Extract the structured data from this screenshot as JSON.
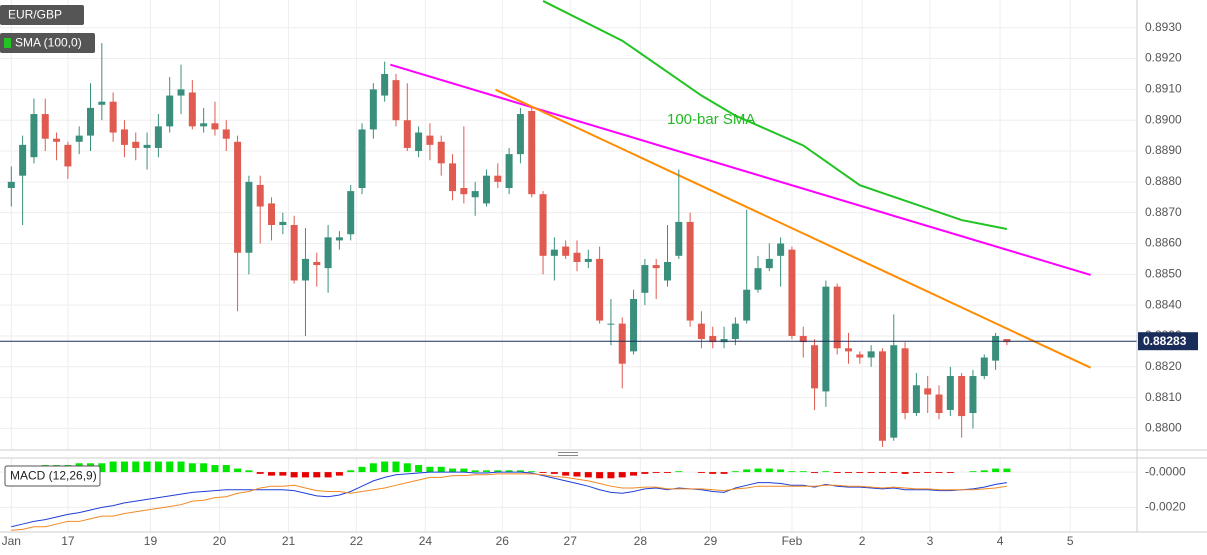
{
  "chart_data": [
    {
      "type": "candlestick",
      "title": "EUR/GBP",
      "up_color": "#3a8f7c",
      "down_color": "#e05a4f",
      "xlim": [
        -1,
        99.5
      ],
      "ylim": [
        0.8793,
        0.8939
      ],
      "yticks": [
        {
          "value": 0.88,
          "label": "0.8800"
        },
        {
          "value": 0.881,
          "label": "0.8810"
        },
        {
          "value": 0.882,
          "label": "0.8820"
        },
        {
          "value": 0.883,
          "label": "0.8830"
        },
        {
          "value": 0.884,
          "label": "0.8840"
        },
        {
          "value": 0.885,
          "label": "0.8850"
        },
        {
          "value": 0.886,
          "label": "0.8860"
        },
        {
          "value": 0.887,
          "label": "0.8870"
        },
        {
          "value": 0.888,
          "label": "0.8880"
        },
        {
          "value": 0.889,
          "label": "0.8890"
        },
        {
          "value": 0.89,
          "label": "0.8900"
        },
        {
          "value": 0.891,
          "label": "0.8910"
        },
        {
          "value": 0.892,
          "label": "0.8920"
        },
        {
          "value": 0.893,
          "label": "0.8930"
        }
      ],
      "grid": true,
      "open": [
        0.8878,
        0.8882,
        0.8888,
        0.8902,
        0.8894,
        0.8892,
        0.8893,
        0.8895,
        0.8905,
        0.8906,
        0.8897,
        0.8893,
        0.8891,
        0.8891,
        0.8898,
        0.8908,
        0.8909,
        0.8898,
        0.8899,
        0.8897,
        0.8893,
        0.8857,
        0.8879,
        0.8873,
        0.8866,
        0.8866,
        0.8848,
        0.8854,
        0.8852,
        0.8861,
        0.8863,
        0.8878,
        0.8897,
        0.8908,
        0.8913,
        0.89,
        0.889,
        0.8895,
        0.8893,
        0.8886,
        0.8878,
        0.8875,
        0.8873,
        0.8882,
        0.8878,
        0.8889,
        0.8903,
        0.8876,
        0.8856,
        0.8859,
        0.8857,
        0.8854,
        0.8855,
        0.8834,
        0.8834,
        0.8825,
        0.8844,
        0.8853,
        0.8848,
        0.8856,
        0.8867,
        0.8834,
        0.883,
        0.8828,
        0.8829,
        0.8835,
        0.8845,
        0.8852,
        0.8856,
        0.8858,
        0.883,
        0.8827,
        0.8812,
        0.8846,
        0.8826,
        0.8824,
        0.8823,
        0.8825,
        0.8797,
        0.8826,
        0.8805,
        0.8813,
        0.8811,
        0.8806,
        0.8817,
        0.8805,
        0.8817,
        0.8822,
        0.8829
      ],
      "high": [
        0.8885,
        0.8895,
        0.8907,
        0.8907,
        0.8896,
        0.8893,
        0.8898,
        0.8912,
        0.8925,
        0.8909,
        0.89,
        0.8896,
        0.8896,
        0.8902,
        0.8914,
        0.8918,
        0.8913,
        0.8904,
        0.8906,
        0.89,
        0.8895,
        0.8882,
        0.8882,
        0.8875,
        0.887,
        0.8869,
        0.8865,
        0.8857,
        0.8866,
        0.8864,
        0.8879,
        0.8899,
        0.8912,
        0.8919,
        0.8915,
        0.8912,
        0.8898,
        0.8899,
        0.8895,
        0.8889,
        0.8898,
        0.888,
        0.8884,
        0.8886,
        0.8891,
        0.8904,
        0.8904,
        0.8877,
        0.8862,
        0.8861,
        0.8861,
        0.8858,
        0.8859,
        0.8842,
        0.8836,
        0.8845,
        0.8855,
        0.8855,
        0.8866,
        0.8884,
        0.887,
        0.8838,
        0.8833,
        0.8833,
        0.8836,
        0.8871,
        0.8856,
        0.886,
        0.8862,
        0.8859,
        0.8833,
        0.8829,
        0.8848,
        0.8847,
        0.8831,
        0.8825,
        0.8827,
        0.8826,
        0.8837,
        0.8828,
        0.8818,
        0.8817,
        0.8814,
        0.882,
        0.8818,
        0.8819,
        0.8824,
        0.8831,
        0.8829
      ],
      "low": [
        0.8872,
        0.8866,
        0.8886,
        0.889,
        0.8887,
        0.8881,
        0.8889,
        0.889,
        0.89,
        0.8893,
        0.8888,
        0.8887,
        0.8884,
        0.8888,
        0.8896,
        0.8902,
        0.8897,
        0.8896,
        0.8895,
        0.889,
        0.8838,
        0.885,
        0.886,
        0.8861,
        0.8863,
        0.8847,
        0.883,
        0.8846,
        0.8844,
        0.8858,
        0.8861,
        0.8876,
        0.8894,
        0.8906,
        0.8898,
        0.889,
        0.8888,
        0.8887,
        0.8882,
        0.8874,
        0.8873,
        0.8869,
        0.8872,
        0.8878,
        0.8876,
        0.8886,
        0.8875,
        0.885,
        0.8848,
        0.8855,
        0.8851,
        0.8852,
        0.8834,
        0.8827,
        0.8813,
        0.8824,
        0.884,
        0.8842,
        0.8846,
        0.8855,
        0.8833,
        0.8826,
        0.8826,
        0.8826,
        0.8827,
        0.8834,
        0.8844,
        0.8851,
        0.8846,
        0.8829,
        0.8823,
        0.8806,
        0.8807,
        0.8824,
        0.8821,
        0.8821,
        0.882,
        0.8794,
        0.8796,
        0.8803,
        0.8804,
        0.8805,
        0.8803,
        0.8804,
        0.8797,
        0.88,
        0.8816,
        0.8819,
        0.8827
      ],
      "close": [
        0.888,
        0.8892,
        0.8902,
        0.8894,
        0.8893,
        0.8885,
        0.8895,
        0.8904,
        0.8906,
        0.8896,
        0.8892,
        0.8891,
        0.8892,
        0.8898,
        0.8908,
        0.891,
        0.8898,
        0.8899,
        0.8897,
        0.8894,
        0.8857,
        0.888,
        0.8872,
        0.8866,
        0.8867,
        0.8848,
        0.8855,
        0.8853,
        0.8862,
        0.8862,
        0.8877,
        0.8897,
        0.891,
        0.8915,
        0.89,
        0.8891,
        0.8896,
        0.8892,
        0.8886,
        0.8877,
        0.8876,
        0.8877,
        0.8882,
        0.888,
        0.8889,
        0.8902,
        0.8876,
        0.8856,
        0.8858,
        0.8856,
        0.8854,
        0.8855,
        0.8835,
        0.8834,
        0.8821,
        0.8842,
        0.8853,
        0.8852,
        0.8854,
        0.8867,
        0.8835,
        0.8829,
        0.8828,
        0.8829,
        0.8834,
        0.8845,
        0.8852,
        0.8855,
        0.886,
        0.883,
        0.8828,
        0.8813,
        0.8846,
        0.8826,
        0.8825,
        0.8823,
        0.8825,
        0.8796,
        0.8827,
        0.8805,
        0.8814,
        0.8811,
        0.8805,
        0.8817,
        0.8804,
        0.8817,
        0.8823,
        0.883,
        0.8828
      ],
      "sma": {
        "name": "SMA (100,0)",
        "color": "#22c322",
        "x": [
          47,
          54,
          61,
          64,
          70,
          75,
          84,
          88
        ],
        "values": [
          0.89387,
          0.89258,
          0.8908,
          0.89015,
          0.88918,
          0.88789,
          0.88676,
          0.88647
        ]
      },
      "annotation": "100-bar SMA",
      "trendlines": [
        {
          "color": "#ff00ff",
          "x": [
            33.5,
            95.4
          ],
          "values": [
            0.8918,
            0.88498
          ]
        },
        {
          "color": "#ff8c00",
          "x": [
            42.8,
            95.4
          ],
          "values": [
            0.89099,
            0.88197
          ]
        }
      ],
      "last_price": 0.88283
    },
    {
      "type": "macd",
      "title": "MACD (12,26,9)",
      "xlim": [
        -1,
        99.5
      ],
      "ylim": [
        -0.0034,
        0.0008
      ],
      "yticks": [
        {
          "value": 0,
          "label": "-0.0000"
        },
        {
          "value": -0.002,
          "label": "-0.0020"
        }
      ],
      "xticks": [
        {
          "value": 0,
          "label": "Jan"
        },
        {
          "value": 5,
          "label": "17"
        },
        {
          "value": 12.3,
          "label": "19"
        },
        {
          "value": 18.4,
          "label": "20"
        },
        {
          "value": 24.5,
          "label": "21"
        },
        {
          "value": 30.5,
          "label": "22"
        },
        {
          "value": 36.6,
          "label": "24"
        },
        {
          "value": 43.4,
          "label": "26"
        },
        {
          "value": 49.4,
          "label": "27"
        },
        {
          "value": 55.6,
          "label": "28"
        },
        {
          "value": 61.8,
          "label": "29"
        },
        {
          "value": 69,
          "label": "Feb"
        },
        {
          "value": 75.2,
          "label": "2"
        },
        {
          "value": 81.2,
          "label": "3"
        },
        {
          "value": 87.4,
          "label": "4"
        },
        {
          "value": 93.6,
          "label": "5"
        }
      ],
      "histogram": {
        "up_color": "#00e600",
        "down_color": "#e60000",
        "values": [
          0.0002,
          0.0003,
          0.0003,
          0.0004,
          0.0004,
          0.0004,
          0.0005,
          0.0005,
          0.0005,
          0.0006,
          0.0006,
          0.0006,
          0.0006,
          0.0006,
          0.0006,
          0.0006,
          0.0005,
          0.0005,
          0.0004,
          0.0004,
          0.0002,
          0.0001,
          -0.0001,
          -0.0002,
          -0.0002,
          -0.0003,
          -0.0003,
          -0.0003,
          -0.0003,
          -0.0002,
          0.0001,
          0.0003,
          0.0005,
          0.0006,
          0.0006,
          0.0005,
          0.0004,
          0.0003,
          0.0003,
          0.0002,
          0.0002,
          0.0001,
          0.0001,
          0.0001,
          0.0001,
          0.0001,
          5e-05,
          -5e-05,
          -0.0001,
          -0.0002,
          -0.00025,
          -0.0003,
          -0.00035,
          -0.00035,
          -0.0003,
          -0.0002,
          -0.0001,
          -5e-05,
          -5e-05,
          5e-05,
          0,
          -5e-05,
          -0.0001,
          -0.0001,
          5e-05,
          0.00015,
          0.0002,
          0.0002,
          0.00015,
          5e-05,
          5e-05,
          -5e-05,
          5e-05,
          -5e-05,
          -5e-05,
          -5e-05,
          -5e-05,
          -5e-05,
          -5e-05,
          -0.0001,
          -5e-05,
          -5e-05,
          -5e-05,
          -5e-05,
          0,
          5e-05,
          0.0001,
          0.0002,
          0.0002
        ]
      },
      "series": [
        {
          "color": "#1f3fd6",
          "values": [
            -0.0031,
            -0.00295,
            -0.0028,
            -0.0027,
            -0.00255,
            -0.0024,
            -0.0023,
            -0.00215,
            -0.002,
            -0.0019,
            -0.00175,
            -0.00165,
            -0.00155,
            -0.00145,
            -0.00135,
            -0.00125,
            -0.00115,
            -0.0011,
            -0.00105,
            -0.001,
            -0.001,
            -0.001,
            -0.001,
            -0.001,
            -0.001,
            -0.00105,
            -0.0012,
            -0.00135,
            -0.0014,
            -0.0013,
            -0.0011,
            -0.0008,
            -0.0005,
            -0.0003,
            -0.00015,
            -0.0001,
            -5e-05,
            0,
            0,
            0,
            0,
            -5e-05,
            -5e-05,
            0,
            0,
            0,
            -5e-05,
            -0.0002,
            -0.00035,
            -0.0005,
            -0.00065,
            -0.0008,
            -0.001,
            -0.00115,
            -0.0012,
            -0.0011,
            -0.00095,
            -0.0009,
            -0.001,
            -0.0009,
            -0.00095,
            -0.001,
            -0.0011,
            -0.00115,
            -0.0009,
            -0.00075,
            -0.0006,
            -0.0006,
            -0.00065,
            -0.00075,
            -0.00075,
            -0.00085,
            -0.0007,
            -0.0008,
            -0.00085,
            -0.00085,
            -0.0009,
            -0.00095,
            -0.0009,
            -0.001,
            -0.001,
            -0.001,
            -0.00105,
            -0.00105,
            -0.001,
            -0.00095,
            -0.00085,
            -0.0007,
            -0.0006
          ]
        },
        {
          "color": "#f08a24",
          "values": [
            -0.0033,
            -0.00325,
            -0.0031,
            -0.0031,
            -0.00295,
            -0.0028,
            -0.0028,
            -0.00265,
            -0.0025,
            -0.0025,
            -0.00235,
            -0.00225,
            -0.00215,
            -0.00205,
            -0.00195,
            -0.00185,
            -0.00165,
            -0.0016,
            -0.00145,
            -0.0014,
            -0.0012,
            -0.0011,
            -0.0009,
            -0.0008,
            -0.0008,
            -0.00075,
            -0.0009,
            -0.00105,
            -0.0011,
            -0.0011,
            -0.0012,
            -0.0011,
            -0.001,
            -0.0009,
            -0.00075,
            -0.0006,
            -0.00045,
            -0.0003,
            -0.0003,
            -0.0002,
            -0.0002,
            -0.00015,
            -0.00015,
            -0.0001,
            -0.0001,
            -0.0001,
            -0.0001,
            -0.00015,
            -0.00025,
            -0.0003,
            -0.0004,
            -0.0005,
            -0.00065,
            -0.0008,
            -0.0009,
            -0.0009,
            -0.00085,
            -0.00085,
            -0.00095,
            -0.00095,
            -0.00095,
            -0.00095,
            -0.001,
            -0.00105,
            -0.00095,
            -0.0009,
            -0.0008,
            -0.0008,
            -0.0008,
            -0.0008,
            -0.0008,
            -0.0008,
            -0.00075,
            -0.00075,
            -0.0008,
            -0.0008,
            -0.00085,
            -0.0009,
            -0.00085,
            -0.0009,
            -0.00095,
            -0.00095,
            -0.001,
            -0.001,
            -0.001,
            -0.001,
            -0.00095,
            -0.0009,
            -0.0008
          ]
        }
      ]
    }
  ]
}
